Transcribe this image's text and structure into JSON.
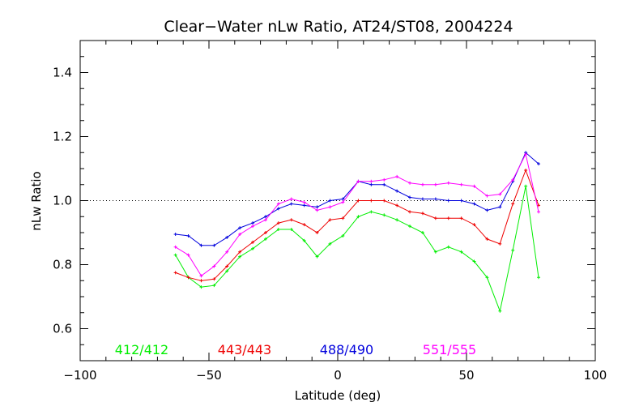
{
  "chart_data": {
    "type": "line",
    "title": "Clear−Water nLw Ratio, AT24/ST08, 2004224",
    "xlabel": "Latitude (deg)",
    "ylabel": "nLw Ratio",
    "xlim": [
      -100,
      100
    ],
    "ylim": [
      0.5,
      1.5
    ],
    "xticks": [
      -100,
      -50,
      0,
      50,
      100
    ],
    "yticks": [
      0.6,
      0.8,
      1.0,
      1.2,
      1.4
    ],
    "xtick_labels": [
      "−100",
      "−50",
      "0",
      "50",
      "100"
    ],
    "ytick_labels": [
      "0.6",
      "0.8",
      "1.0",
      "1.2",
      "1.4"
    ],
    "reference_line": 1.0,
    "grid": false,
    "legend_position": "bottom",
    "x": [
      -63,
      -58,
      -53,
      -48,
      -43,
      -38,
      -33,
      -28,
      -23,
      -18,
      -13,
      -8,
      -3,
      2,
      8,
      13,
      18,
      23,
      28,
      33,
      38,
      43,
      48,
      53,
      58,
      63,
      68,
      73,
      78
    ],
    "series": [
      {
        "name": "412/412",
        "color": "#00ee00",
        "values": [
          0.83,
          0.76,
          0.73,
          0.735,
          0.78,
          0.825,
          0.85,
          0.88,
          0.91,
          0.91,
          0.875,
          0.825,
          0.865,
          0.89,
          0.95,
          0.965,
          0.955,
          0.94,
          0.92,
          0.9,
          0.84,
          0.855,
          0.84,
          0.81,
          0.76,
          0.655,
          0.845,
          1.045,
          0.76
        ]
      },
      {
        "name": "443/443",
        "color": "#ee0000",
        "values": [
          0.775,
          0.76,
          0.75,
          0.755,
          0.795,
          0.84,
          0.87,
          0.9,
          0.93,
          0.94,
          0.925,
          0.9,
          0.94,
          0.945,
          1.0,
          1.0,
          1.0,
          0.985,
          0.965,
          0.96,
          0.945,
          0.945,
          0.945,
          0.925,
          0.88,
          0.865,
          0.99,
          1.095,
          0.985
        ]
      },
      {
        "name": "488/490",
        "color": "#0000dd",
        "values": [
          0.895,
          0.89,
          0.86,
          0.86,
          0.885,
          0.915,
          0.93,
          0.95,
          0.975,
          0.99,
          0.985,
          0.98,
          1.0,
          1.005,
          1.06,
          1.05,
          1.05,
          1.03,
          1.01,
          1.005,
          1.005,
          1.0,
          1.0,
          0.99,
          0.97,
          0.98,
          1.06,
          1.15,
          1.115
        ]
      },
      {
        "name": "551/555",
        "color": "#ff00ff",
        "values": [
          0.855,
          0.83,
          0.765,
          0.795,
          0.84,
          0.895,
          0.92,
          0.94,
          0.99,
          1.005,
          0.995,
          0.97,
          0.98,
          0.995,
          1.06,
          1.06,
          1.065,
          1.075,
          1.055,
          1.05,
          1.05,
          1.055,
          1.05,
          1.045,
          1.015,
          1.02,
          1.065,
          1.145,
          0.965
        ]
      }
    ]
  }
}
